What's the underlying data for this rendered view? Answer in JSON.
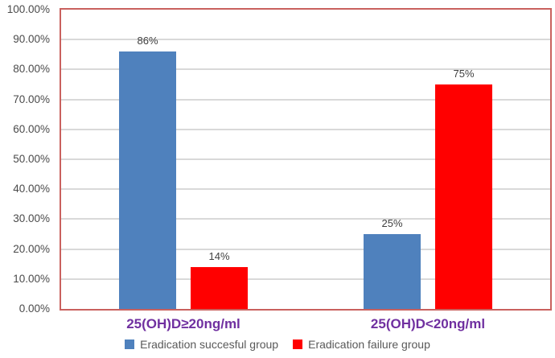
{
  "chart_data": {
    "type": "bar",
    "title": "",
    "categories": [
      "25(OH)D≥20ng/ml",
      "25(OH)D<20ng/ml"
    ],
    "series": [
      {
        "name": "Eradication succesful group",
        "color": "#4F81BD",
        "values": [
          86,
          25
        ],
        "data_labels": [
          "86%",
          "25%"
        ]
      },
      {
        "name": "Eradication failure group",
        "color": "#FF0000",
        "values": [
          14,
          75
        ],
        "data_labels": [
          "14%",
          "75%"
        ]
      }
    ],
    "y_axis": {
      "min": 0,
      "max": 100,
      "step": 10,
      "tick_labels": [
        "0.00%",
        "10.00%",
        "20.00%",
        "30.00%",
        "40.00%",
        "50.00%",
        "60.00%",
        "70.00%",
        "80.00%",
        "90.00%",
        "100.00%"
      ]
    },
    "grid": true,
    "legend_position": "bottom",
    "colors": {
      "category_label": "#7030A0",
      "plot_border": "#c9615e",
      "gridline": "#d9d9d9",
      "tick_text": "#4a4a4a",
      "legend_text": "#595959",
      "data_label_text": "#3f3f3f"
    }
  }
}
